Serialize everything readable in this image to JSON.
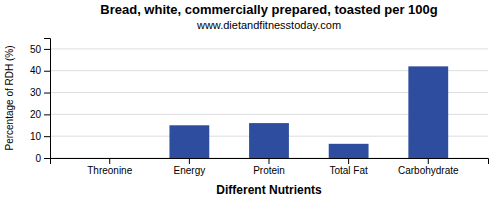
{
  "chart_data": {
    "type": "bar",
    "title": "Bread, white, commercially prepared, toasted per 100g",
    "subtitle": "www.dietandfitnesstoday.com",
    "xlabel": "Different Nutrients",
    "ylabel": "Percentage of RDH (%)",
    "categories": [
      "Threonine",
      "Energy",
      "Protein",
      "Total Fat",
      "Carbohydrate"
    ],
    "values": [
      0,
      15,
      16,
      6.5,
      42
    ],
    "color": "#2e4d9e",
    "ylim": [
      0,
      55
    ],
    "yticks": [
      0,
      10,
      20,
      30,
      40,
      50
    ],
    "grid": true
  }
}
